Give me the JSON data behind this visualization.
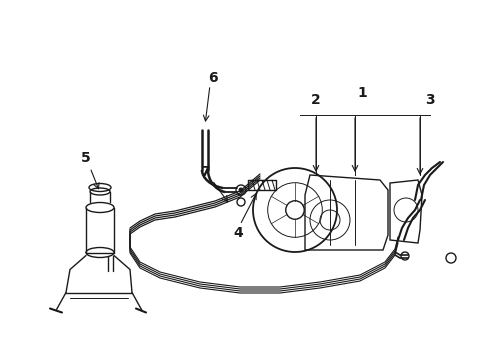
{
  "bg_color": "#ffffff",
  "line_color": "#1a1a1a",
  "fig_width": 4.9,
  "fig_height": 3.6,
  "dpi": 100,
  "lw_hose": 1.3,
  "lw_main": 1.0,
  "lw_thin": 0.7,
  "label_fontsize": 10,
  "label_fontweight": "bold"
}
